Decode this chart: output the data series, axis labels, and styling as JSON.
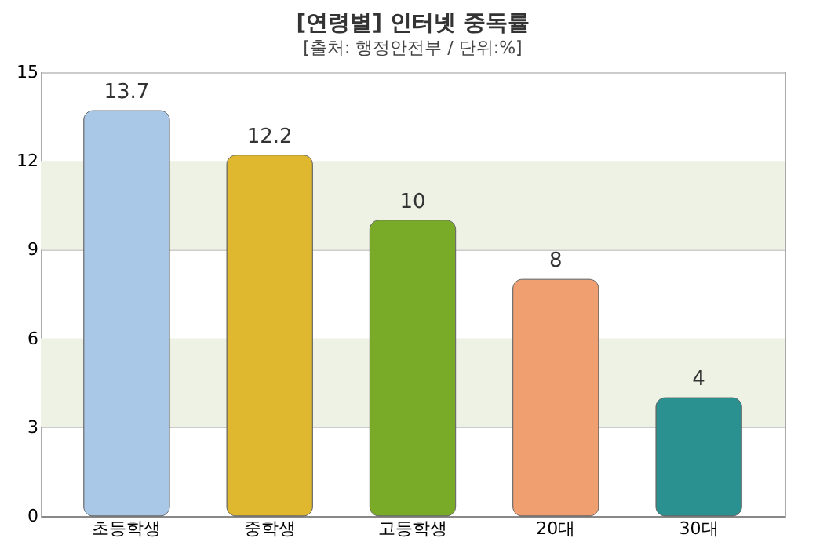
{
  "chart_data": {
    "type": "bar",
    "title": "[연령별] 인터넷 중독률",
    "subtitle": "[출처: 행정안전부 / 단위:%]",
    "categories": [
      "초등학생",
      "중학생",
      "고등학생",
      "20대",
      "30대"
    ],
    "values": [
      13.7,
      12.2,
      10,
      8,
      4
    ],
    "colors": [
      "#a9c8e8",
      "#e0b830",
      "#7aab28",
      "#f0a070",
      "#2a9090"
    ],
    "ylim": [
      0,
      15
    ],
    "yticks": [
      0,
      3,
      6,
      9,
      12,
      15
    ],
    "grid": "y",
    "data_labels": true,
    "bands": [
      {
        "axis": "y",
        "from": 3,
        "to": 6,
        "color": "#eef2e4"
      },
      {
        "axis": "y",
        "from": 9,
        "to": 12,
        "color": "#eef2e4"
      }
    ]
  }
}
